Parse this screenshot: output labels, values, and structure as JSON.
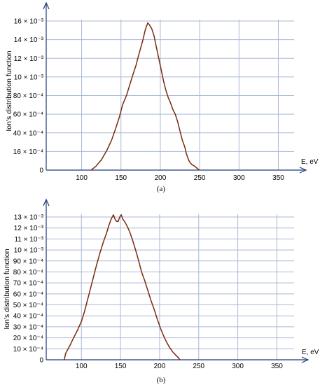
{
  "chart_data": [
    {
      "type": "line",
      "caption": "(a)",
      "ylabel": "Ion's distribution function",
      "xlabel": "E, eV",
      "x_ticks": [
        "100",
        "150",
        "200",
        "250",
        "300",
        "350"
      ],
      "x_tick_values": [
        100,
        150,
        200,
        250,
        300,
        350
      ],
      "y_ticks": [
        "0",
        "16 × 10⁻⁴",
        "40 × 10⁻⁴",
        "60 × 10⁻⁴",
        "80 × 10⁻⁴",
        "10 × 10⁻³",
        "12 × 10⁻³",
        "14 × 10⁻³",
        "16 × 10⁻³"
      ],
      "xlim": [
        55,
        370
      ],
      "ylim": [
        0,
        0.016
      ],
      "grid": true,
      "series": [
        {
          "color": "#7b2a10",
          "points": [
            [
              112,
              0.0
            ],
            [
              118,
              0.0004
            ],
            [
              125,
              0.0011
            ],
            [
              132,
              0.0021
            ],
            [
              138,
              0.0032
            ],
            [
              143,
              0.0044
            ],
            [
              148,
              0.0057
            ],
            [
              152,
              0.007
            ],
            [
              157,
              0.008
            ],
            [
              161,
              0.0091
            ],
            [
              165,
              0.0102
            ],
            [
              169,
              0.0112
            ],
            [
              172,
              0.0122
            ],
            [
              175,
              0.0131
            ],
            [
              178,
              0.014
            ],
            [
              181,
              0.0151
            ],
            [
              184,
              0.0158
            ],
            [
              186,
              0.0156
            ],
            [
              189,
              0.0152
            ],
            [
              192,
              0.0144
            ],
            [
              195,
              0.0132
            ],
            [
              198,
              0.012
            ],
            [
              201,
              0.0108
            ],
            [
              204,
              0.0096
            ],
            [
              207,
              0.0086
            ],
            [
              210,
              0.0078
            ],
            [
              213,
              0.0072
            ],
            [
              216,
              0.0065
            ],
            [
              219,
              0.006
            ],
            [
              222,
              0.0052
            ],
            [
              225,
              0.0042
            ],
            [
              228,
              0.0032
            ],
            [
              231,
              0.0025
            ],
            [
              233,
              0.0018
            ],
            [
              235,
              0.0013
            ],
            [
              237,
              0.0009
            ],
            [
              240,
              0.0006
            ],
            [
              244,
              0.0004
            ],
            [
              248,
              0.0001
            ],
            [
              250,
              0.0
            ]
          ]
        }
      ]
    },
    {
      "type": "line",
      "caption": "(b)",
      "ylabel": "Ion's distribution function",
      "xlabel": "E, eV",
      "x_ticks": [
        "100",
        "150",
        "200",
        "250",
        "300",
        "350"
      ],
      "x_tick_values": [
        100,
        150,
        200,
        250,
        300,
        350
      ],
      "y_ticks": [
        "0",
        "10 × 10⁻⁴",
        "20 × 10⁻⁴",
        "30 × 10⁻⁴",
        "40 × 10⁻⁴",
        "50 × 10⁻⁴",
        "60 × 10⁻⁴",
        "70 × 10⁻⁴",
        "80 × 10⁻⁴",
        "90 × 10⁻⁴",
        "10 × 10⁻³",
        "11 × 10⁻³",
        "12 × 10⁻³",
        "13 × 10⁻³"
      ],
      "xlim": [
        55,
        372
      ],
      "ylim": [
        0,
        0.013
      ],
      "grid": true,
      "series": [
        {
          "color": "#7b2a10",
          "points": [
            [
              78,
              0.0
            ],
            [
              80,
              0.0006
            ],
            [
              83,
              0.001
            ],
            [
              86,
              0.0014
            ],
            [
              90,
              0.002
            ],
            [
              95,
              0.0027
            ],
            [
              100,
              0.0035
            ],
            [
              104,
              0.0044
            ],
            [
              108,
              0.0055
            ],
            [
              112,
              0.0066
            ],
            [
              116,
              0.0077
            ],
            [
              120,
              0.0088
            ],
            [
              124,
              0.0098
            ],
            [
              128,
              0.0107
            ],
            [
              132,
              0.0115
            ],
            [
              135,
              0.0122
            ],
            [
              138,
              0.0128
            ],
            [
              141,
              0.0132
            ],
            [
              143,
              0.0128
            ],
            [
              145,
              0.0126
            ],
            [
              147,
              0.0126
            ],
            [
              149,
              0.013
            ],
            [
              151,
              0.0132
            ],
            [
              153,
              0.0128
            ],
            [
              156,
              0.0125
            ],
            [
              159,
              0.0121
            ],
            [
              162,
              0.0116
            ],
            [
              165,
              0.011
            ],
            [
              168,
              0.0103
            ],
            [
              171,
              0.0096
            ],
            [
              174,
              0.0088
            ],
            [
              177,
              0.008
            ],
            [
              181,
              0.0072
            ],
            [
              185,
              0.0063
            ],
            [
              189,
              0.0054
            ],
            [
              193,
              0.0046
            ],
            [
              197,
              0.0037
            ],
            [
              201,
              0.0029
            ],
            [
              205,
              0.0022
            ],
            [
              209,
              0.0016
            ],
            [
              213,
              0.0011
            ],
            [
              217,
              0.0007
            ],
            [
              221,
              0.0004
            ],
            [
              224,
              0.0002
            ],
            [
              226,
              0.0
            ]
          ]
        }
      ]
    }
  ]
}
